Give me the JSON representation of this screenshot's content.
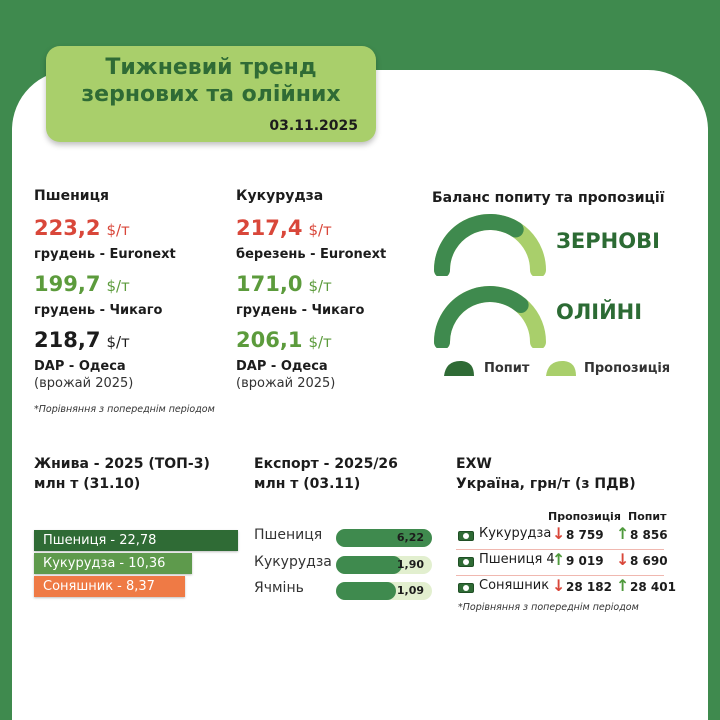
{
  "title": {
    "line1": "Тижневий тренд",
    "line2": "зернових та олійних",
    "date": "03.11.2025"
  },
  "wheat": {
    "heading": "Пшениця",
    "prices": [
      {
        "value": "223,2",
        "unit": "$/т",
        "label": "грудень - Euronext",
        "color": "#d9473a"
      },
      {
        "value": "199,7",
        "unit": "$/т",
        "label": "грудень - Чикаго",
        "color": "#5c9b3c"
      },
      {
        "value": "218,7",
        "unit": "$/т",
        "label": "DAP - Одеса",
        "sublabel": "(врожай 2025)",
        "color": "#1c1c1c"
      }
    ]
  },
  "corn": {
    "heading": "Кукурудза",
    "prices": [
      {
        "value": "217,4",
        "unit": "$/т",
        "label": "березень - Euronext",
        "color": "#d9473a"
      },
      {
        "value": "171,0",
        "unit": "$/т",
        "label": "грудень - Чикаго",
        "color": "#5c9b3c"
      },
      {
        "value": "206,1",
        "unit": "$/т",
        "label": "DAP - Одеса",
        "sublabel": "(врожай 2025)",
        "color": "#5c9b3c"
      }
    ]
  },
  "note_prices": "*Порівняння з попереднім періодом",
  "balance": {
    "heading": "Баланс попиту та пропозиції",
    "items": [
      {
        "name": "ЗЕРНОВІ",
        "demand_share": 0.68
      },
      {
        "name": "ОЛІЙНІ",
        "demand_share": 0.72
      }
    ],
    "legend": {
      "demand": "Попит",
      "supply": "Пропозиція"
    },
    "colors": {
      "demand": "#3f8a4e",
      "supply": "#a9cf6b"
    }
  },
  "harvest": {
    "heading_line1": "Жнива - 2025 (ТОП-3)",
    "heading_line2": "млн т (31.10)",
    "bars": [
      {
        "label": "Пшениця - 22,78",
        "value": 22.78,
        "color": "#2f6b35"
      },
      {
        "label": "Кукурудза - 10,36",
        "value": 10.36,
        "color": "#5e9a4c"
      },
      {
        "label": "Соняшник - 8,37",
        "value": 8.37,
        "color": "#ef7a45"
      }
    ]
  },
  "export": {
    "heading_line1": "Експорт - 2025/26",
    "heading_line2": "млн т (03.11)",
    "rows": [
      {
        "label": "Пшениця",
        "value": "6,22",
        "num": 6.22
      },
      {
        "label": "Кукурудза",
        "value": "1,90",
        "num": 1.9
      },
      {
        "label": "Ячмінь",
        "value": "1,09",
        "num": 1.09
      }
    ]
  },
  "exw": {
    "heading_line1": "EXW",
    "heading_line2": "Україна, грн/т (з ПДВ)",
    "col_supply": "Пропозиція",
    "col_demand": "Попит",
    "rows": [
      {
        "name": "Кукурудза",
        "supply": "8 759",
        "supply_trend": "down",
        "demand": "8 856",
        "demand_trend": "up"
      },
      {
        "name": "Пшениця 4",
        "supply": "9 019",
        "supply_trend": "up",
        "demand": "8 690",
        "demand_trend": "down"
      },
      {
        "name": "Соняшник",
        "supply": "28 182",
        "supply_trend": "down",
        "demand": "28 401",
        "demand_trend": "up"
      }
    ],
    "note": "*Порівняння з попереднім періодом"
  }
}
